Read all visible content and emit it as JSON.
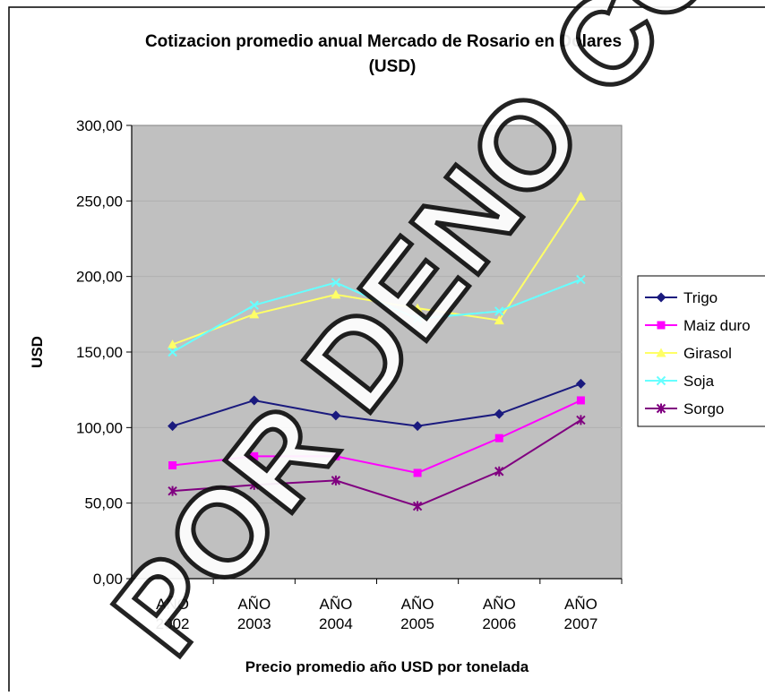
{
  "watermark": "POR DENO COPIAR",
  "chart_data": {
    "type": "line",
    "title_line1": "Cotizacion promedio anual Mercado de Rosario en Dolares",
    "title_line2": "(USD)",
    "xlabel": "Precio promedio año USD por tonelada",
    "ylabel": "USD",
    "ylim": [
      0,
      300
    ],
    "y_ticks": [
      "0,00",
      "50,00",
      "100,00",
      "150,00",
      "200,00",
      "250,00",
      "300,00"
    ],
    "y_tick_values": [
      0,
      50,
      100,
      150,
      200,
      250,
      300
    ],
    "categories": [
      [
        "AÑO",
        "2002"
      ],
      [
        "AÑO",
        "2003"
      ],
      [
        "AÑO",
        "2004"
      ],
      [
        "AÑO",
        "2005"
      ],
      [
        "AÑO",
        "2006"
      ],
      [
        "AÑO",
        "2007"
      ]
    ],
    "plot_background": "#c0c0c0",
    "grid": "horizontal",
    "legend_position": "right",
    "series": [
      {
        "name": "Trigo",
        "color": "#1a1a7e",
        "marker": "diamond",
        "values": [
          101,
          118,
          108,
          101,
          109,
          129
        ]
      },
      {
        "name": "Maiz duro",
        "color": "#ff00ff",
        "marker": "square",
        "values": [
          75,
          81,
          81,
          70,
          93,
          118
        ]
      },
      {
        "name": "Girasol",
        "color": "#ffff66",
        "marker": "triangle",
        "values": [
          155,
          175,
          188,
          179,
          171,
          253
        ]
      },
      {
        "name": "Soja",
        "color": "#66ffff",
        "marker": "x",
        "values": [
          150,
          181,
          196,
          172,
          177,
          198
        ]
      },
      {
        "name": "Sorgo",
        "color": "#800080",
        "marker": "star",
        "values": [
          58,
          62,
          65,
          48,
          71,
          105
        ]
      }
    ]
  }
}
